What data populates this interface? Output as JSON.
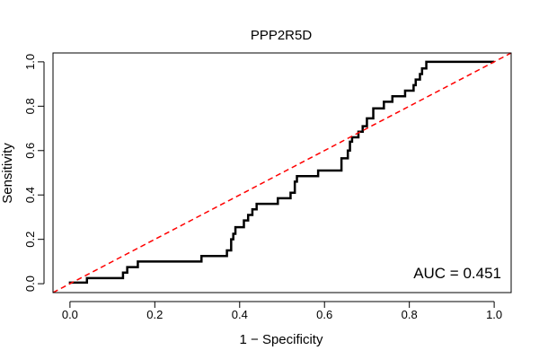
{
  "chart_data": {
    "type": "line",
    "title": "PPP2R5D",
    "xlabel": "1 − Specificity",
    "ylabel": "Sensitivity",
    "xlim": [
      -0.04,
      1.04
    ],
    "ylim": [
      -0.04,
      1.04
    ],
    "x_ticks": [
      0.0,
      0.2,
      0.4,
      0.6,
      0.8,
      1.0
    ],
    "x_tick_labels": [
      "0.0",
      "0.2",
      "0.4",
      "0.6",
      "0.8",
      "1.0"
    ],
    "y_ticks": [
      0.0,
      0.2,
      0.4,
      0.6,
      0.8,
      1.0
    ],
    "y_tick_labels": [
      "0.0",
      "0.2",
      "0.4",
      "0.6",
      "0.8",
      "1.0"
    ],
    "grid": false,
    "annotation": "AUC = 0.451",
    "series": [
      {
        "color": "#000000",
        "style": "solid",
        "points": [
          [
            0.0,
            0.0
          ],
          [
            0.0,
            0.005
          ],
          [
            0.04,
            0.005
          ],
          [
            0.04,
            0.025
          ],
          [
            0.125,
            0.025
          ],
          [
            0.125,
            0.05
          ],
          [
            0.135,
            0.05
          ],
          [
            0.135,
            0.075
          ],
          [
            0.16,
            0.075
          ],
          [
            0.16,
            0.1
          ],
          [
            0.31,
            0.1
          ],
          [
            0.31,
            0.125
          ],
          [
            0.37,
            0.125
          ],
          [
            0.37,
            0.15
          ],
          [
            0.38,
            0.15
          ],
          [
            0.38,
            0.2
          ],
          [
            0.385,
            0.2
          ],
          [
            0.385,
            0.225
          ],
          [
            0.39,
            0.225
          ],
          [
            0.39,
            0.255
          ],
          [
            0.41,
            0.255
          ],
          [
            0.41,
            0.285
          ],
          [
            0.42,
            0.285
          ],
          [
            0.42,
            0.31
          ],
          [
            0.43,
            0.31
          ],
          [
            0.43,
            0.335
          ],
          [
            0.44,
            0.335
          ],
          [
            0.44,
            0.36
          ],
          [
            0.49,
            0.36
          ],
          [
            0.49,
            0.385
          ],
          [
            0.52,
            0.385
          ],
          [
            0.52,
            0.41
          ],
          [
            0.53,
            0.41
          ],
          [
            0.53,
            0.46
          ],
          [
            0.535,
            0.46
          ],
          [
            0.535,
            0.485
          ],
          [
            0.585,
            0.485
          ],
          [
            0.585,
            0.51
          ],
          [
            0.64,
            0.51
          ],
          [
            0.64,
            0.565
          ],
          [
            0.655,
            0.565
          ],
          [
            0.655,
            0.6
          ],
          [
            0.66,
            0.6
          ],
          [
            0.66,
            0.64
          ],
          [
            0.665,
            0.64
          ],
          [
            0.665,
            0.66
          ],
          [
            0.68,
            0.66
          ],
          [
            0.68,
            0.685
          ],
          [
            0.69,
            0.685
          ],
          [
            0.69,
            0.71
          ],
          [
            0.7,
            0.71
          ],
          [
            0.7,
            0.745
          ],
          [
            0.715,
            0.745
          ],
          [
            0.715,
            0.79
          ],
          [
            0.74,
            0.79
          ],
          [
            0.74,
            0.82
          ],
          [
            0.76,
            0.82
          ],
          [
            0.76,
            0.845
          ],
          [
            0.79,
            0.845
          ],
          [
            0.79,
            0.87
          ],
          [
            0.81,
            0.87
          ],
          [
            0.81,
            0.895
          ],
          [
            0.815,
            0.895
          ],
          [
            0.815,
            0.92
          ],
          [
            0.825,
            0.92
          ],
          [
            0.825,
            0.945
          ],
          [
            0.83,
            0.945
          ],
          [
            0.83,
            0.97
          ],
          [
            0.84,
            0.97
          ],
          [
            0.84,
            1.0
          ],
          [
            1.0,
            1.0
          ]
        ]
      },
      {
        "color": "#ff0000",
        "style": "dashed",
        "points": [
          [
            -0.04,
            -0.04
          ],
          [
            1.04,
            1.04
          ]
        ]
      }
    ]
  }
}
